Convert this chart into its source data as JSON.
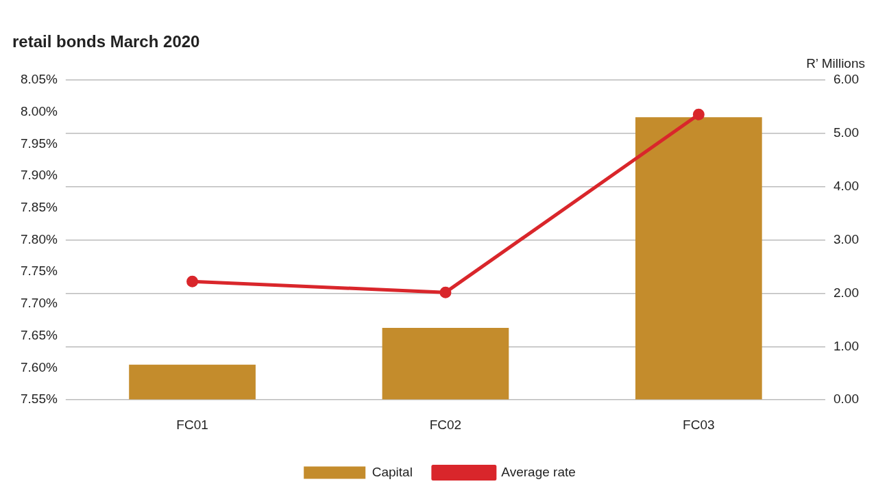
{
  "chart_data": {
    "type": "bar",
    "title": "retail bonds March 2020",
    "y2label": "R’ Millions",
    "categories": [
      "FC01",
      "FC02",
      "FC03"
    ],
    "series": [
      {
        "name": "Capital",
        "axis": "y2",
        "color": "#c48c2c",
        "values": [
          0.66,
          1.35,
          5.3
        ]
      },
      {
        "name": "Average rate",
        "type": "line",
        "axis": "y",
        "color": "#d9262b",
        "values": [
          7.735,
          7.718,
          7.996
        ]
      }
    ],
    "ylim": [
      7.55,
      8.05
    ],
    "yticks": [
      {
        "value": 7.55,
        "label": "7.55%"
      },
      {
        "value": 7.6,
        "label": "7.60%"
      },
      {
        "value": 7.65,
        "label": "7.65%"
      },
      {
        "value": 7.7,
        "label": "7.70%"
      },
      {
        "value": 7.75,
        "label": "7.75%"
      },
      {
        "value": 7.8,
        "label": "7.80%"
      },
      {
        "value": 7.85,
        "label": "7.85%"
      },
      {
        "value": 7.9,
        "label": "7.90%"
      },
      {
        "value": 7.95,
        "label": "7.95%"
      },
      {
        "value": 8.0,
        "label": "8.00%"
      },
      {
        "value": 8.05,
        "label": "8.05%"
      }
    ],
    "y2lim": [
      0,
      6
    ],
    "y2ticks": [
      {
        "value": 0,
        "label": "0.00"
      },
      {
        "value": 1,
        "label": "1.00"
      },
      {
        "value": 2,
        "label": "2.00"
      },
      {
        "value": 3,
        "label": "3.00"
      },
      {
        "value": 4,
        "label": "4.00"
      },
      {
        "value": 5,
        "label": "5.00"
      },
      {
        "value": 6,
        "label": "6.00"
      }
    ],
    "grid": true,
    "legend": "bottom",
    "marker": "circle",
    "line_style": "solid"
  }
}
